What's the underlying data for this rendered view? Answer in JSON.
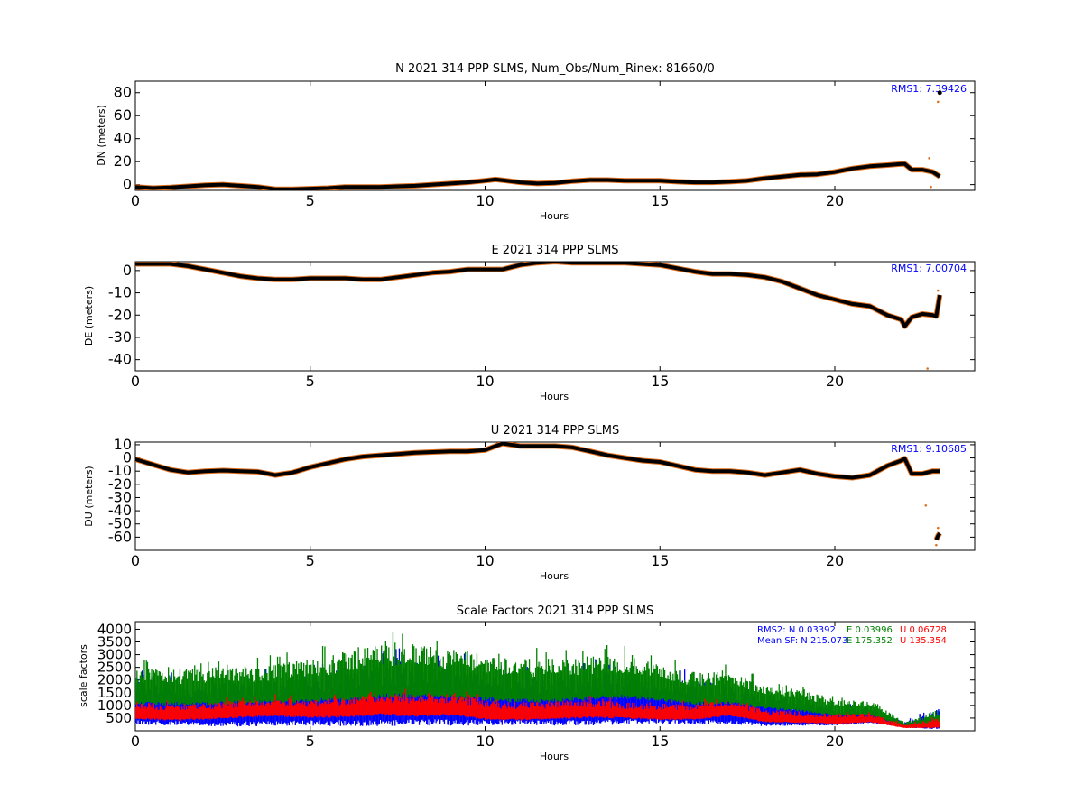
{
  "panels": [
    {
      "title": "N 2021 314 PPP  SLMS, Num_Obs/Num_Rinex: 81660/0",
      "ylabel": "DN (meters)",
      "xlabel": "Hours",
      "rms": "RMS1:  7.39426"
    },
    {
      "title": "E 2021 314 PPP  SLMS",
      "ylabel": "DE (meters)",
      "xlabel": "Hours",
      "rms": "RMS1:  7.00704"
    },
    {
      "title": "U 2021 314 PPP  SLMS",
      "ylabel": "DU (meters)",
      "xlabel": "Hours",
      "rms": "RMS1:  9.10685"
    },
    {
      "title": "Scale Factors 2021 314 PPP  SLMS",
      "ylabel": "scale factors",
      "xlabel": "Hours",
      "rms2": {
        "label": "RMS2: N  0.03392",
        "e": "E  0.03996",
        "u": "U  0.06728"
      },
      "mean_sf": {
        "label": "Mean SF: N 215.073",
        "e": "E 175.352",
        "u": "U  135.354"
      }
    }
  ],
  "colors": {
    "line": "#000000",
    "outlier": "#e07020",
    "n": "#0000ff",
    "e": "#008000",
    "u": "#ff0000"
  },
  "chart_data": [
    {
      "type": "line",
      "title": "N 2021 314 PPP  SLMS, Num_Obs/Num_Rinex: 81660/0",
      "xlabel": "Hours",
      "ylabel": "DN (meters)",
      "xlim": [
        0,
        24
      ],
      "ylim": [
        -5,
        90
      ],
      "xticks": [
        0,
        5,
        10,
        15,
        20
      ],
      "yticks": [
        0,
        20,
        40,
        60,
        80
      ],
      "series": [
        {
          "x": [
            0,
            0.5,
            1,
            1.5,
            2,
            2.5,
            3,
            3.5,
            4,
            4.5,
            5,
            5.5,
            6,
            6.5,
            7,
            7.5,
            8,
            8.5,
            9,
            9.5,
            10,
            10.3,
            10.6,
            11,
            11.5,
            12,
            12.5,
            13,
            13.5,
            14,
            14.5,
            15,
            15.5,
            16,
            16.5,
            17,
            17.5,
            18,
            18.5,
            19,
            19.5,
            20,
            20.5,
            21,
            21.5,
            21.9,
            22.0,
            22.2,
            22.5,
            22.8,
            23.0
          ],
          "y": [
            -2,
            -3,
            -2.5,
            -1.5,
            -0.5,
            0,
            -1,
            -2,
            -4,
            -4,
            -3.5,
            -3,
            -2,
            -2,
            -2,
            -1.5,
            -1,
            0,
            1,
            2,
            3.5,
            4.5,
            3.5,
            2,
            1,
            1.5,
            3,
            4,
            4,
            3.5,
            3.5,
            3.5,
            2.5,
            2,
            2,
            2.5,
            3.5,
            5.5,
            7,
            8.5,
            9,
            11,
            14,
            16,
            17,
            18,
            18,
            13,
            13,
            11,
            7
          ]
        }
      ],
      "outliers": [
        {
          "x": 22.7,
          "y": 23
        },
        {
          "x": 22.75,
          "y": -2
        },
        {
          "x": 22.95,
          "y": 72
        },
        {
          "x": 23.0,
          "y": 80
        }
      ],
      "rms": "RMS1:  7.39426"
    },
    {
      "type": "line",
      "title": "E 2021 314 PPP  SLMS",
      "xlabel": "Hours",
      "ylabel": "DE (meters)",
      "xlim": [
        0,
        24
      ],
      "ylim": [
        -45,
        4
      ],
      "xticks": [
        0,
        5,
        10,
        15,
        20
      ],
      "yticks": [
        0,
        -10,
        -20,
        -30,
        -40
      ],
      "series": [
        {
          "x": [
            0,
            0.5,
            1,
            1.5,
            2,
            2.5,
            3,
            3.5,
            4,
            4.5,
            5,
            5.5,
            6,
            6.5,
            7,
            7.5,
            8,
            8.5,
            9,
            9.5,
            10,
            10.5,
            11,
            11.5,
            12,
            12.5,
            13,
            13.5,
            14,
            14.5,
            15,
            15.5,
            16,
            16.5,
            17,
            17.5,
            18,
            18.5,
            19,
            19.5,
            20,
            20.5,
            21,
            21.5,
            21.9,
            22.0,
            22.2,
            22.5,
            22.8,
            22.9,
            23.0
          ],
          "y": [
            3,
            3,
            3,
            2,
            0.5,
            -1,
            -2.5,
            -3.5,
            -4,
            -4,
            -3.5,
            -3.5,
            -3.5,
            -4,
            -4,
            -3,
            -2,
            -1,
            -0.5,
            0.5,
            0.5,
            0.5,
            2.5,
            3.5,
            4,
            3.5,
            3.5,
            3.5,
            3.5,
            3,
            2.5,
            1,
            -0.5,
            -1.5,
            -1.5,
            -2,
            -3,
            -5,
            -8,
            -11,
            -13,
            -15,
            -16,
            -20,
            -22,
            -25,
            -21,
            -19.5,
            -20,
            -20.5,
            -11
          ]
        }
      ],
      "outliers": [
        {
          "x": 22.65,
          "y": -44
        },
        {
          "x": 22.95,
          "y": -9
        }
      ],
      "rms": "RMS1:  7.00704"
    },
    {
      "type": "line",
      "title": "U 2021 314 PPP  SLMS",
      "xlabel": "Hours",
      "ylabel": "DU (meters)",
      "xlim": [
        0,
        24
      ],
      "ylim": [
        -70,
        12
      ],
      "xticks": [
        0,
        5,
        10,
        15,
        20
      ],
      "yticks": [
        10,
        0,
        -10,
        -20,
        -30,
        -40,
        -50,
        -60
      ],
      "series": [
        {
          "x": [
            0,
            0.5,
            1,
            1.5,
            2,
            2.5,
            3,
            3.5,
            4,
            4.5,
            5,
            5.5,
            6,
            6.5,
            7,
            7.5,
            8,
            8.5,
            9,
            9.5,
            10,
            10.5,
            11,
            11.5,
            12,
            12.5,
            13,
            13.5,
            14,
            14.5,
            15,
            15.5,
            16,
            16.5,
            17,
            17.5,
            18,
            18.5,
            19,
            19.5,
            20,
            20.5,
            21,
            21.5,
            21.9,
            22.0,
            22.2,
            22.5,
            22.8,
            23.0
          ],
          "y": [
            -1,
            -5,
            -9,
            -11,
            -10,
            -9.5,
            -10,
            -10.5,
            -13,
            -11,
            -7,
            -4,
            -1,
            1,
            2,
            3,
            4,
            4.5,
            5,
            5,
            6,
            11,
            9,
            9,
            9,
            8,
            5,
            2,
            0,
            -2,
            -3,
            -6,
            -9,
            -10,
            -10,
            -11,
            -13,
            -11,
            -9,
            -12,
            -14,
            -15,
            -13,
            -6,
            -2,
            -0.5,
            -12,
            -12,
            -10,
            -10
          ]
        },
        {
          "x": [
            22.9,
            22.95,
            23.0
          ],
          "y": [
            -62,
            -59,
            -57
          ]
        }
      ],
      "outliers": [
        {
          "x": 22.6,
          "y": -36
        },
        {
          "x": 22.95,
          "y": -53
        },
        {
          "x": 22.9,
          "y": -66
        }
      ],
      "rms": "RMS1:  9.10685"
    },
    {
      "type": "scatter",
      "title": "Scale Factors 2021 314 PPP  SLMS",
      "xlabel": "Hours",
      "ylabel": "scale factors",
      "xlim": [
        0,
        24
      ],
      "ylim": [
        0,
        4300
      ],
      "xticks": [
        0,
        5,
        10,
        15,
        20
      ],
      "yticks": [
        500,
        1000,
        1500,
        2000,
        2500,
        3000,
        3500,
        4000
      ],
      "series": [
        {
          "name": "N",
          "x": [
            0,
            1,
            2,
            3,
            4,
            5,
            6,
            7,
            8,
            9,
            10,
            11,
            12,
            13,
            14,
            15,
            16,
            17,
            18,
            19,
            20,
            21,
            22,
            23
          ],
          "center": [
            900,
            800,
            780,
            820,
            840,
            900,
            980,
            1060,
            1080,
            1050,
            950,
            880,
            900,
            950,
            960,
            900,
            850,
            800,
            620,
            550,
            450,
            500,
            200,
            350
          ],
          "spread": [
            1300,
            1200,
            1200,
            1300,
            1300,
            1400,
            1600,
            1800,
            1800,
            1700,
            1500,
            1300,
            1400,
            1500,
            1400,
            1300,
            1200,
            1100,
            900,
            700,
            500,
            400,
            150,
            600
          ]
        },
        {
          "name": "E",
          "x": [
            0,
            1,
            2,
            3,
            4,
            5,
            6,
            7,
            8,
            9,
            10,
            11,
            12,
            13,
            14,
            15,
            16,
            17,
            18,
            19,
            20,
            21,
            22,
            23
          ],
          "center": [
            1500,
            1500,
            1500,
            1550,
            1600,
            1700,
            1800,
            2000,
            2000,
            1900,
            1800,
            1700,
            1700,
            1800,
            1850,
            1650,
            1450,
            1500,
            1200,
            1050,
            800,
            800,
            200,
            400
          ],
          "spread": [
            1000,
            1000,
            1000,
            1000,
            1100,
            1200,
            1400,
            1500,
            1500,
            1400,
            1300,
            1200,
            1200,
            1200,
            1200,
            1000,
            900,
            900,
            700,
            600,
            450,
            400,
            150,
            500
          ]
        },
        {
          "name": "U",
          "x": [
            0,
            1,
            2,
            3,
            4,
            5,
            6,
            7,
            8,
            9,
            10,
            11,
            12,
            13,
            14,
            15,
            16,
            17,
            18,
            19,
            20,
            21,
            22,
            23
          ],
          "center": [
            700,
            620,
            650,
            760,
            800,
            750,
            800,
            900,
            850,
            880,
            700,
            650,
            700,
            750,
            700,
            650,
            650,
            800,
            500,
            450,
            400,
            450,
            150,
            250
          ],
          "spread": [
            500,
            450,
            450,
            500,
            500,
            500,
            550,
            600,
            600,
            600,
            550,
            500,
            500,
            500,
            450,
            450,
            450,
            450,
            350,
            300,
            300,
            250,
            100,
            300
          ]
        }
      ],
      "rms2": {
        "N": 0.03392,
        "E": 0.03996,
        "U": 0.06728
      },
      "mean_sf": {
        "N": 215.073,
        "E": 175.352,
        "U": 135.354
      }
    }
  ]
}
